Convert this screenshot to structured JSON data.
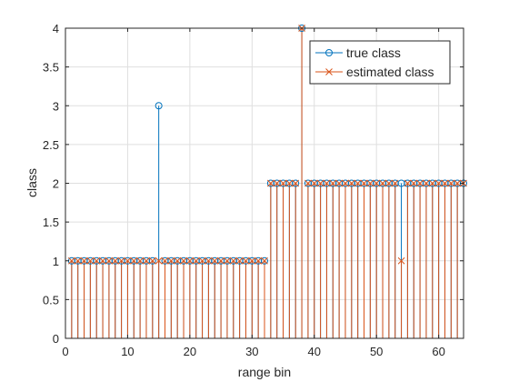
{
  "chart_data": {
    "type": "stem",
    "xlabel": "range bin",
    "ylabel": "class",
    "xlim": [
      0,
      64
    ],
    "ylim": [
      0,
      4
    ],
    "xticks": [
      0,
      10,
      20,
      30,
      40,
      50,
      60
    ],
    "yticks": [
      0,
      0.5,
      1,
      1.5,
      2,
      2.5,
      3,
      3.5,
      4
    ],
    "xtick_labels": [
      "0",
      "10",
      "20",
      "30",
      "40",
      "50",
      "60"
    ],
    "ytick_labels": [
      "0",
      "0.5",
      "1",
      "1.5",
      "2",
      "2.5",
      "3",
      "3.5",
      "4"
    ],
    "grid": true,
    "legend_position": "top-right",
    "x": [
      1,
      2,
      3,
      4,
      5,
      6,
      7,
      8,
      9,
      10,
      11,
      12,
      13,
      14,
      15,
      16,
      17,
      18,
      19,
      20,
      21,
      22,
      23,
      24,
      25,
      26,
      27,
      28,
      29,
      30,
      31,
      32,
      33,
      34,
      35,
      36,
      37,
      38,
      39,
      40,
      41,
      42,
      43,
      44,
      45,
      46,
      47,
      48,
      49,
      50,
      51,
      52,
      53,
      54,
      55,
      56,
      57,
      58,
      59,
      60,
      61,
      62,
      63,
      64
    ],
    "series": [
      {
        "name": "true class",
        "marker": "o",
        "color": "#0072bd",
        "values": [
          1,
          1,
          1,
          1,
          1,
          1,
          1,
          1,
          1,
          1,
          1,
          1,
          1,
          1,
          3,
          1,
          1,
          1,
          1,
          1,
          1,
          1,
          1,
          1,
          1,
          1,
          1,
          1,
          1,
          1,
          1,
          1,
          2,
          2,
          2,
          2,
          2,
          4,
          2,
          2,
          2,
          2,
          2,
          2,
          2,
          2,
          2,
          2,
          2,
          2,
          2,
          2,
          2,
          2,
          2,
          2,
          2,
          2,
          2,
          2,
          2,
          2,
          2,
          2
        ]
      },
      {
        "name": "estimated class",
        "marker": "x",
        "color": "#d95319",
        "values": [
          1,
          1,
          1,
          1,
          1,
          1,
          1,
          1,
          1,
          1,
          1,
          1,
          1,
          1,
          1,
          1,
          1,
          1,
          1,
          1,
          1,
          1,
          1,
          1,
          1,
          1,
          1,
          1,
          1,
          1,
          1,
          1,
          2,
          2,
          2,
          2,
          2,
          4,
          2,
          2,
          2,
          2,
          2,
          2,
          2,
          2,
          2,
          2,
          2,
          2,
          2,
          2,
          2,
          1,
          2,
          2,
          2,
          2,
          2,
          2,
          2,
          2,
          2,
          2
        ]
      }
    ]
  }
}
